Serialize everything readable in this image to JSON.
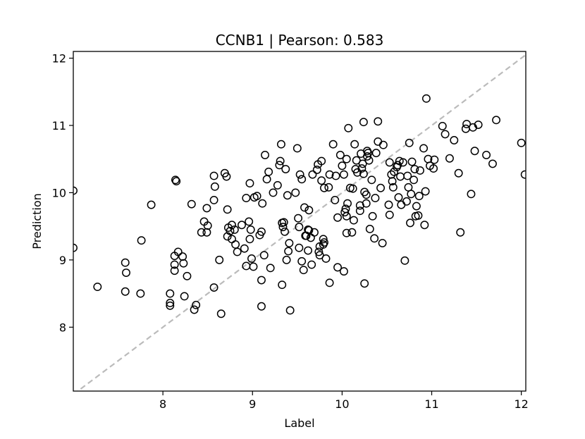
{
  "chart_data": {
    "type": "scatter",
    "title": "CCNB1  |  Pearson: 0.583",
    "xlabel": "Label",
    "ylabel": "Prediction",
    "xlim": [
      7.0,
      12.05
    ],
    "ylim": [
      7.05,
      12.1
    ],
    "xticks": [
      "8",
      "9",
      "10",
      "11",
      "12"
    ],
    "yticks": [
      "8",
      "9",
      "10",
      "11",
      "12"
    ],
    "xtick_values": [
      8,
      9,
      10,
      11,
      12
    ],
    "ytick_values": [
      8,
      9,
      10,
      11,
      12
    ],
    "identity_line": {
      "style": "dashed",
      "color": "#bbbbbb"
    },
    "marker": {
      "shape": "open-circle",
      "edge_color": "#000000"
    },
    "grid": false,
    "points": [
      [
        7.0,
        10.03
      ],
      [
        7.0,
        9.18
      ],
      [
        7.27,
        8.6
      ],
      [
        7.58,
        8.96
      ],
      [
        7.59,
        8.81
      ],
      [
        7.58,
        8.53
      ],
      [
        7.75,
        8.5
      ],
      [
        7.76,
        9.29
      ],
      [
        7.87,
        9.82
      ],
      [
        8.08,
        8.5
      ],
      [
        8.08,
        8.36
      ],
      [
        8.08,
        8.32
      ],
      [
        8.13,
        9.06
      ],
      [
        8.13,
        8.93
      ],
      [
        8.13,
        8.84
      ],
      [
        8.14,
        10.19
      ],
      [
        8.15,
        10.17
      ],
      [
        8.17,
        9.12
      ],
      [
        8.22,
        9.05
      ],
      [
        8.23,
        8.95
      ],
      [
        8.24,
        8.46
      ],
      [
        8.27,
        8.76
      ],
      [
        8.32,
        9.83
      ],
      [
        8.35,
        8.26
      ],
      [
        8.37,
        8.33
      ],
      [
        8.43,
        9.41
      ],
      [
        8.46,
        9.57
      ],
      [
        8.49,
        9.41
      ],
      [
        8.5,
        9.51
      ],
      [
        8.49,
        9.77
      ],
      [
        8.57,
        9.89
      ],
      [
        8.58,
        10.09
      ],
      [
        8.57,
        10.25
      ],
      [
        8.57,
        8.59
      ],
      [
        8.63,
        9.0
      ],
      [
        8.65,
        8.2
      ],
      [
        8.69,
        10.29
      ],
      [
        8.71,
        10.24
      ],
      [
        8.72,
        9.75
      ],
      [
        8.73,
        9.48
      ],
      [
        8.72,
        9.35
      ],
      [
        8.75,
        9.43
      ],
      [
        8.77,
        9.52
      ],
      [
        8.77,
        9.31
      ],
      [
        8.8,
        9.45
      ],
      [
        8.81,
        9.23
      ],
      [
        8.83,
        9.12
      ],
      [
        8.88,
        9.52
      ],
      [
        8.91,
        9.17
      ],
      [
        8.93,
        8.91
      ],
      [
        8.93,
        9.92
      ],
      [
        8.96,
        9.57
      ],
      [
        8.97,
        9.31
      ],
      [
        8.98,
        9.45
      ],
      [
        8.97,
        10.14
      ],
      [
        8.99,
        9.02
      ],
      [
        9.01,
        8.9
      ],
      [
        9.02,
        9.93
      ],
      [
        9.05,
        9.95
      ],
      [
        9.08,
        9.37
      ],
      [
        9.1,
        9.42
      ],
      [
        9.1,
        8.7
      ],
      [
        9.1,
        8.31
      ],
      [
        9.11,
        9.84
      ],
      [
        9.13,
        9.07
      ],
      [
        9.14,
        10.56
      ],
      [
        9.16,
        10.2
      ],
      [
        9.18,
        10.31
      ],
      [
        9.2,
        8.88
      ],
      [
        9.23,
        10.0
      ],
      [
        9.28,
        10.11
      ],
      [
        9.3,
        10.41
      ],
      [
        9.31,
        10.47
      ],
      [
        9.32,
        10.72
      ],
      [
        9.33,
        8.63
      ],
      [
        9.33,
        9.55
      ],
      [
        9.34,
        9.49
      ],
      [
        9.35,
        9.56
      ],
      [
        9.36,
        9.42
      ],
      [
        9.37,
        10.35
      ],
      [
        9.38,
        9.0
      ],
      [
        9.39,
        9.96
      ],
      [
        9.4,
        9.13
      ],
      [
        9.41,
        9.25
      ],
      [
        9.42,
        8.25
      ],
      [
        9.48,
        10.0
      ],
      [
        9.5,
        10.66
      ],
      [
        9.51,
        9.62
      ],
      [
        9.52,
        9.49
      ],
      [
        9.52,
        9.18
      ],
      [
        9.53,
        10.27
      ],
      [
        9.55,
        10.2
      ],
      [
        9.55,
        8.98
      ],
      [
        9.57,
        8.85
      ],
      [
        9.58,
        9.78
      ],
      [
        9.59,
        9.36
      ],
      [
        9.6,
        9.36
      ],
      [
        9.62,
        9.45
      ],
      [
        9.62,
        9.14
      ],
      [
        9.63,
        9.44
      ],
      [
        9.63,
        9.74
      ],
      [
        9.65,
        9.33
      ],
      [
        9.66,
        8.93
      ],
      [
        9.67,
        10.27
      ],
      [
        9.69,
        9.41
      ],
      [
        9.72,
        10.34
      ],
      [
        9.73,
        10.42
      ],
      [
        9.74,
        9.12
      ],
      [
        9.75,
        9.07
      ],
      [
        9.75,
        9.2
      ],
      [
        9.77,
        10.47
      ],
      [
        9.77,
        10.18
      ],
      [
        9.79,
        9.23
      ],
      [
        9.79,
        9.31
      ],
      [
        9.8,
        9.26
      ],
      [
        9.8,
        10.07
      ],
      [
        9.82,
        9.02
      ],
      [
        9.85,
        10.08
      ],
      [
        9.86,
        10.27
      ],
      [
        9.86,
        8.66
      ],
      [
        9.9,
        10.72
      ],
      [
        9.92,
        9.89
      ],
      [
        9.93,
        10.25
      ],
      [
        9.95,
        9.63
      ],
      [
        9.95,
        8.89
      ],
      [
        9.98,
        10.56
      ],
      [
        10.0,
        10.4
      ],
      [
        10.02,
        10.27
      ],
      [
        10.02,
        8.83
      ],
      [
        10.03,
        9.71
      ],
      [
        10.04,
        9.76
      ],
      [
        10.05,
        10.5
      ],
      [
        10.05,
        9.65
      ],
      [
        10.05,
        9.4
      ],
      [
        10.06,
        9.84
      ],
      [
        10.07,
        10.96
      ],
      [
        10.09,
        10.07
      ],
      [
        10.11,
        9.41
      ],
      [
        10.12,
        10.06
      ],
      [
        10.13,
        9.59
      ],
      [
        10.14,
        10.72
      ],
      [
        10.15,
        10.35
      ],
      [
        10.16,
        10.48
      ],
      [
        10.17,
        10.3
      ],
      [
        10.2,
        9.73
      ],
      [
        10.2,
        9.81
      ],
      [
        10.21,
        10.58
      ],
      [
        10.22,
        10.36
      ],
      [
        10.23,
        10.43
      ],
      [
        10.24,
        10.28
      ],
      [
        10.24,
        11.05
      ],
      [
        10.25,
        8.65
      ],
      [
        10.25,
        10.01
      ],
      [
        10.27,
        9.84
      ],
      [
        10.27,
        9.97
      ],
      [
        10.28,
        10.54
      ],
      [
        10.28,
        10.62
      ],
      [
        10.29,
        10.59
      ],
      [
        10.3,
        10.48
      ],
      [
        10.31,
        9.46
      ],
      [
        10.33,
        10.19
      ],
      [
        10.34,
        9.65
      ],
      [
        10.36,
        9.32
      ],
      [
        10.37,
        9.92
      ],
      [
        10.38,
        10.59
      ],
      [
        10.4,
        10.76
      ],
      [
        10.4,
        11.06
      ],
      [
        10.43,
        10.07
      ],
      [
        10.45,
        9.25
      ],
      [
        10.46,
        10.71
      ],
      [
        10.52,
        9.82
      ],
      [
        10.53,
        9.67
      ],
      [
        10.53,
        10.45
      ],
      [
        10.55,
        10.27
      ],
      [
        10.56,
        10.17
      ],
      [
        10.57,
        10.08
      ],
      [
        10.58,
        10.31
      ],
      [
        10.61,
        10.38
      ],
      [
        10.62,
        10.41
      ],
      [
        10.63,
        9.93
      ],
      [
        10.64,
        10.47
      ],
      [
        10.65,
        10.24
      ],
      [
        10.66,
        9.82
      ],
      [
        10.68,
        10.45
      ],
      [
        10.7,
        8.99
      ],
      [
        10.72,
        9.87
      ],
      [
        10.73,
        10.25
      ],
      [
        10.74,
        10.08
      ],
      [
        10.75,
        10.74
      ],
      [
        10.76,
        9.55
      ],
      [
        10.77,
        9.98
      ],
      [
        10.78,
        10.46
      ],
      [
        10.8,
        10.19
      ],
      [
        10.81,
        10.35
      ],
      [
        10.82,
        9.65
      ],
      [
        10.83,
        9.8
      ],
      [
        10.85,
        9.66
      ],
      [
        10.86,
        9.95
      ],
      [
        10.87,
        10.33
      ],
      [
        10.91,
        10.66
      ],
      [
        10.92,
        9.52
      ],
      [
        10.93,
        10.02
      ],
      [
        10.94,
        11.4
      ],
      [
        10.96,
        10.5
      ],
      [
        10.98,
        10.4
      ],
      [
        11.02,
        10.36
      ],
      [
        11.03,
        10.49
      ],
      [
        11.12,
        10.99
      ],
      [
        11.15,
        10.87
      ],
      [
        11.2,
        10.51
      ],
      [
        11.25,
        10.78
      ],
      [
        11.3,
        10.29
      ],
      [
        11.32,
        9.41
      ],
      [
        11.38,
        10.95
      ],
      [
        11.39,
        11.02
      ],
      [
        11.44,
        9.98
      ],
      [
        11.46,
        10.97
      ],
      [
        11.48,
        10.62
      ],
      [
        11.52,
        11.01
      ],
      [
        11.61,
        10.56
      ],
      [
        11.68,
        10.43
      ],
      [
        11.72,
        11.08
      ],
      [
        12.0,
        10.74
      ],
      [
        12.04,
        10.27
      ]
    ]
  }
}
